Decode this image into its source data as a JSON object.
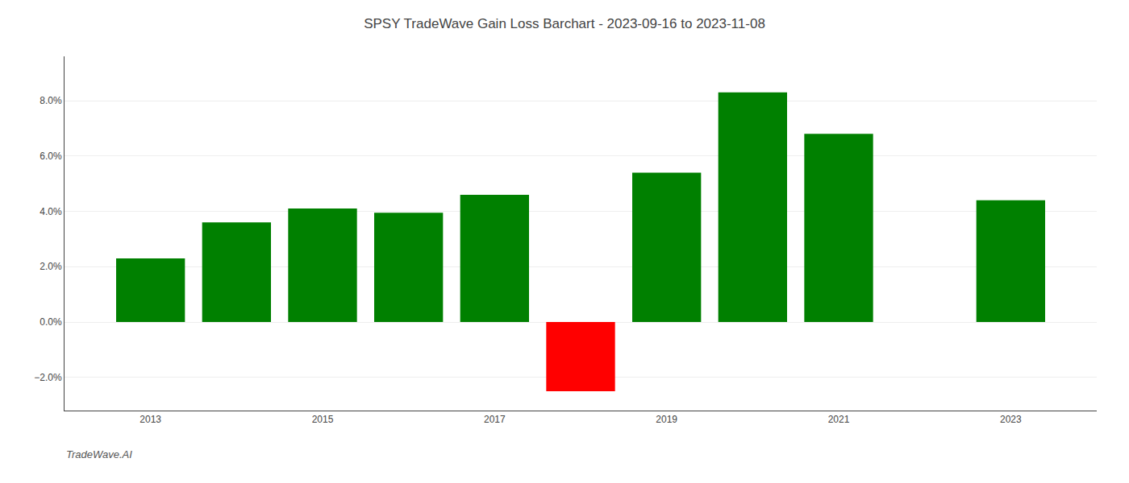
{
  "chart_data": {
    "type": "bar",
    "title": "SPSY TradeWave Gain Loss Barchart - 2023-09-16 to 2023-11-08",
    "annotations": [
      "TradeWave.AI"
    ],
    "x": [
      2013,
      2014,
      2015,
      2016,
      2017,
      2018,
      2019,
      2020,
      2021,
      2023
    ],
    "values": [
      0.023,
      0.036,
      0.041,
      0.0395,
      0.046,
      -0.025,
      0.054,
      0.083,
      0.068,
      0.044
    ],
    "colors": [
      "#008000",
      "#008000",
      "#008000",
      "#008000",
      "#008000",
      "#ff0000",
      "#008000",
      "#008000",
      "#008000",
      "#008000"
    ],
    "xlim": [
      2012.0,
      2024.0
    ],
    "xticks": [
      2013,
      2015,
      2017,
      2019,
      2021,
      2023
    ],
    "ylim": [
      -0.032,
      0.096
    ],
    "yticks": [
      {
        "value": -0.02,
        "label": "−2.0%"
      },
      {
        "value": 0.0,
        "label": "0.0%"
      },
      {
        "value": 0.02,
        "label": "2.0%"
      },
      {
        "value": 0.04,
        "label": "4.0%"
      },
      {
        "value": 0.06,
        "label": "6.0%"
      },
      {
        "value": 0.08,
        "label": "8.0%"
      }
    ],
    "grid": true
  }
}
